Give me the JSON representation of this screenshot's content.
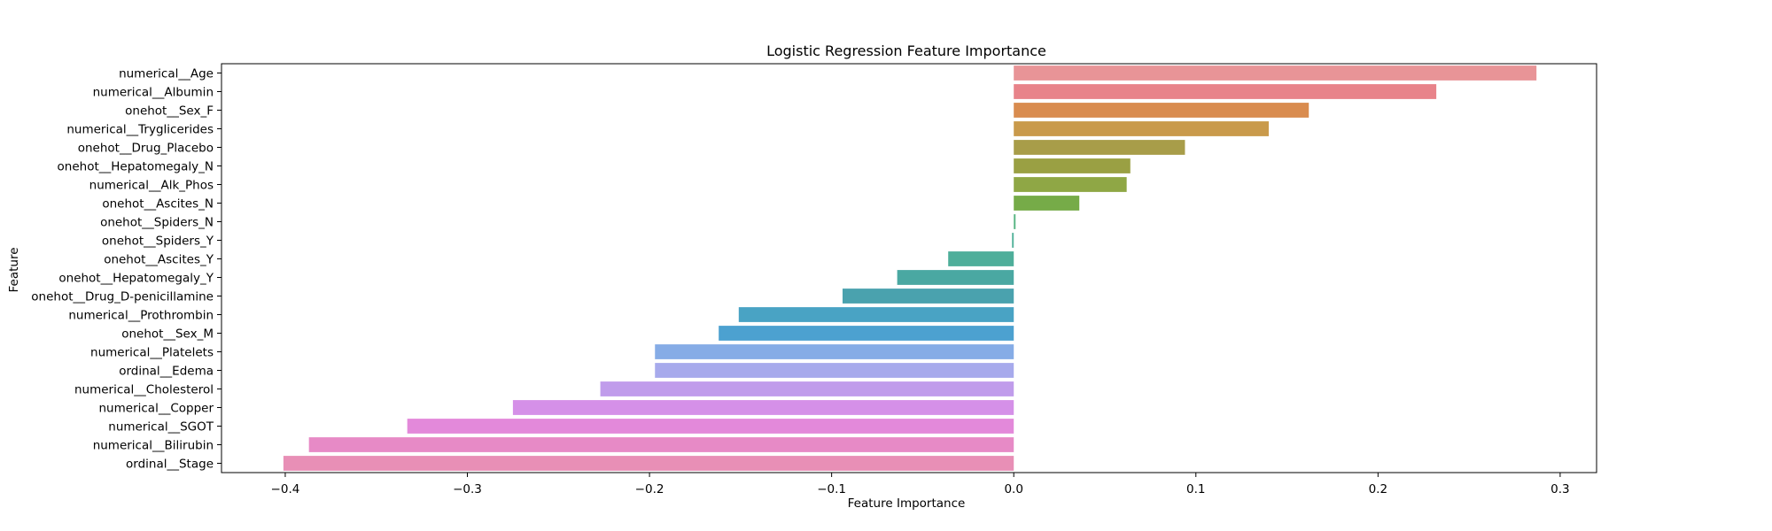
{
  "chart_data": {
    "type": "bar",
    "orientation": "horizontal",
    "title": "Logistic Regression Feature Importance",
    "xlabel": "Feature Importance",
    "ylabel": "Feature",
    "xlim": [
      -0.435,
      0.32
    ],
    "xticks": [
      -0.4,
      -0.3,
      -0.2,
      -0.1,
      0.0,
      0.1,
      0.2,
      0.3
    ],
    "xtick_labels": [
      "−0.4",
      "−0.3",
      "−0.2",
      "−0.1",
      "0.0",
      "0.1",
      "0.2",
      "0.3"
    ],
    "grid": false,
    "categories": [
      "numerical__Age",
      "numerical__Albumin",
      "onehot__Sex_F",
      "numerical__Tryglicerides",
      "onehot__Drug_Placebo",
      "onehot__Hepatomegaly_N",
      "numerical__Alk_Phos",
      "onehot__Ascites_N",
      "onehot__Spiders_N",
      "onehot__Spiders_Y",
      "onehot__Ascites_Y",
      "onehot__Hepatomegaly_Y",
      "onehot__Drug_D-penicillamine",
      "numerical__Prothrombin",
      "onehot__Sex_M",
      "numerical__Platelets",
      "ordinal__Edema",
      "numerical__Cholesterol",
      "numerical__Copper",
      "numerical__SGOT",
      "numerical__Bilirubin",
      "ordinal__Stage"
    ],
    "values": [
      0.287,
      0.232,
      0.162,
      0.14,
      0.094,
      0.064,
      0.062,
      0.036,
      0.001,
      -0.001,
      -0.036,
      -0.064,
      -0.094,
      -0.151,
      -0.162,
      -0.197,
      -0.197,
      -0.227,
      -0.275,
      -0.333,
      -0.387,
      -0.401
    ],
    "colors": [
      "#e89497",
      "#e8838a",
      "#d98c4f",
      "#c99a4b",
      "#a89d49",
      "#9aa043",
      "#8fa745",
      "#76ab48",
      "#5fb888",
      "#5db7a0",
      "#4eae9a",
      "#4aa8a2",
      "#4aa2ae",
      "#49a3c4",
      "#4ca1d0",
      "#86ace6",
      "#a7aaec",
      "#c09ceb",
      "#d590e8",
      "#e389da",
      "#e78ac6",
      "#e88fb6"
    ]
  }
}
